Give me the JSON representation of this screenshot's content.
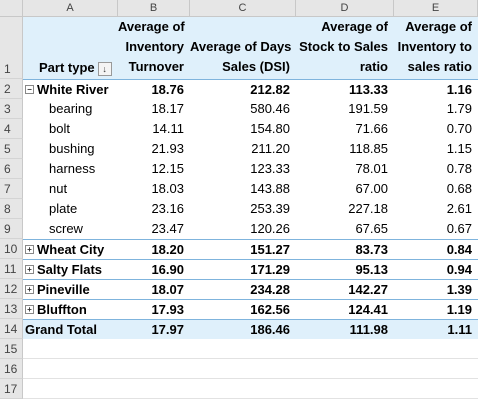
{
  "columns": [
    "A",
    "B",
    "C",
    "D",
    "E"
  ],
  "row_numbers": [
    "1",
    "2",
    "3",
    "4",
    "5",
    "6",
    "7",
    "8",
    "9",
    "10",
    "11",
    "12",
    "13",
    "14",
    "15",
    "16",
    "17"
  ],
  "header": {
    "part_type_label": "Part type",
    "b_lines": [
      "Average of",
      "Inventory",
      "Turnover"
    ],
    "c_lines": [
      "",
      "Average of Days",
      "Sales (DSI)"
    ],
    "d_lines": [
      "Average of",
      "Stock to Sales",
      "ratio"
    ],
    "e_lines": [
      "Average of",
      "Inventory to",
      "sales ratio"
    ]
  },
  "rows": [
    {
      "label": "White River",
      "b": "18.76",
      "c": "212.82",
      "d": "113.33",
      "e": "1.16",
      "kind": "group-open"
    },
    {
      "label": "bearing",
      "b": "18.17",
      "c": "580.46",
      "d": "191.59",
      "e": "1.79",
      "kind": "item"
    },
    {
      "label": "bolt",
      "b": "14.11",
      "c": "154.80",
      "d": "71.66",
      "e": "0.70",
      "kind": "item"
    },
    {
      "label": "bushing",
      "b": "21.93",
      "c": "211.20",
      "d": "118.85",
      "e": "1.15",
      "kind": "item"
    },
    {
      "label": "harness",
      "b": "12.15",
      "c": "123.33",
      "d": "78.01",
      "e": "0.78",
      "kind": "item"
    },
    {
      "label": "nut",
      "b": "18.03",
      "c": "143.88",
      "d": "67.00",
      "e": "0.68",
      "kind": "item"
    },
    {
      "label": "plate",
      "b": "23.16",
      "c": "253.39",
      "d": "227.18",
      "e": "2.61",
      "kind": "item"
    },
    {
      "label": "screw",
      "b": "23.47",
      "c": "120.26",
      "d": "67.65",
      "e": "0.67",
      "kind": "item"
    },
    {
      "label": "Wheat City",
      "b": "18.20",
      "c": "151.27",
      "d": "83.73",
      "e": "0.84",
      "kind": "group-closed"
    },
    {
      "label": "Salty Flats",
      "b": "16.90",
      "c": "171.29",
      "d": "95.13",
      "e": "0.94",
      "kind": "group-closed"
    },
    {
      "label": "Pineville",
      "b": "18.07",
      "c": "234.28",
      "d": "142.27",
      "e": "1.39",
      "kind": "group-closed"
    },
    {
      "label": "Bluffton",
      "b": "17.93",
      "c": "162.56",
      "d": "124.41",
      "e": "1.19",
      "kind": "group-closed"
    },
    {
      "label": "Grand Total",
      "b": "17.97",
      "c": "186.46",
      "d": "111.98",
      "e": "1.11",
      "kind": "total"
    }
  ],
  "icons": {
    "collapse": "minus-box-icon",
    "expand": "plus-box-icon",
    "filter": "filter-dropdown-icon"
  },
  "colors": {
    "header_fill": "#dff0fb",
    "separator": "#7fb4dd",
    "gridline": "#e2e2e2"
  }
}
